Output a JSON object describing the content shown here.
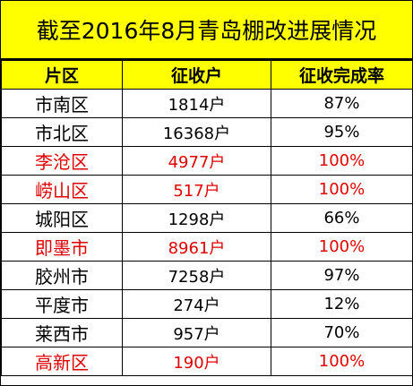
{
  "title": "截至2016年8月青岛棚改进展情况",
  "columns": [
    "片区",
    "征收户",
    "征收完成率"
  ],
  "rows": [
    {
      "region": "市南区",
      "households": "1814户",
      "rate": "87%",
      "highlight": false
    },
    {
      "region": "市北区",
      "households": "16368户",
      "rate": "95%",
      "highlight": false
    },
    {
      "region": "李沧区",
      "households": "4977户",
      "rate": "100%",
      "highlight": true
    },
    {
      "region": "崂山区",
      "households": "517户",
      "rate": "100%",
      "highlight": true
    },
    {
      "region": "城阳区",
      "households": "1298户",
      "rate": "66%",
      "highlight": false
    },
    {
      "region": "即墨市",
      "households": "8961户",
      "rate": "100%",
      "highlight": true
    },
    {
      "region": "胶州市",
      "households": "7258户",
      "rate": "97%",
      "highlight": false
    },
    {
      "region": "平度市",
      "households": "274户",
      "rate": "12%",
      "highlight": false
    },
    {
      "region": "莱西市",
      "households": "957户",
      "rate": "70%",
      "highlight": false
    },
    {
      "region": "高新区",
      "households": "190户",
      "rate": "100%",
      "highlight": true
    }
  ],
  "colors": {
    "header_bg": "#ffff00",
    "highlight_text": "#e00000",
    "normal_text": "#000000"
  }
}
